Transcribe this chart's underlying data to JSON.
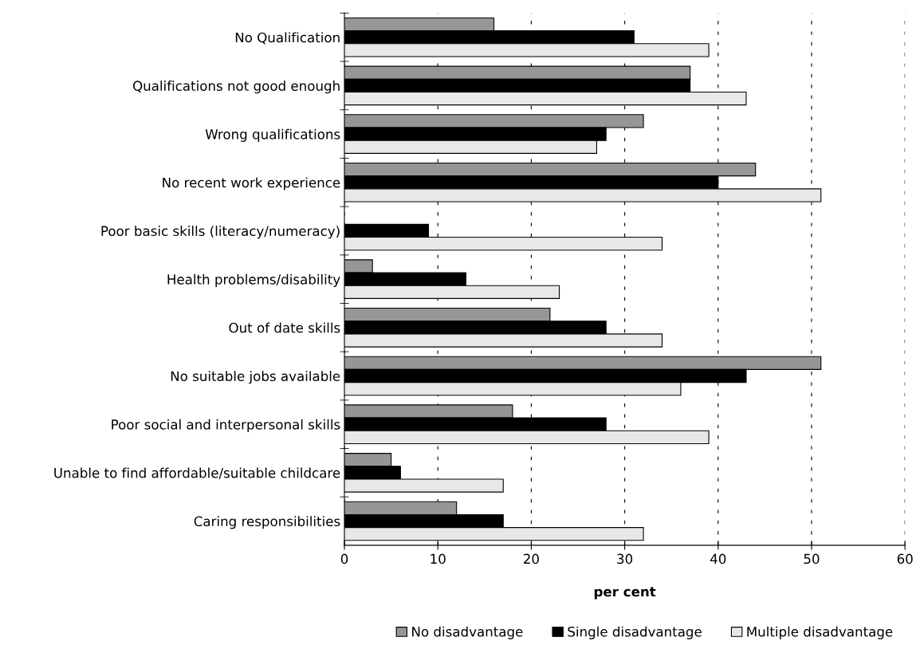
{
  "chart_data": {
    "type": "bar",
    "orientation": "horizontal",
    "xlabel": "per cent",
    "categories": [
      "No Qualification",
      "Qualifications not good enough",
      "Wrong qualifications",
      "No recent work experience",
      "Poor basic skills (literacy/numeracy)",
      "Health problems/disability",
      "Out of date skills",
      "No suitable jobs available",
      "Poor social and interpersonal skills",
      "Unable to find affordable/suitable childcare",
      "Caring responsibilities"
    ],
    "series": [
      {
        "name": "No disadvantage",
        "color": "#969696",
        "values": [
          16,
          37,
          32,
          44,
          null,
          3,
          22,
          51,
          18,
          5,
          12
        ]
      },
      {
        "name": "Single disadvantage",
        "color": "#000000",
        "values": [
          31,
          37,
          28,
          40,
          9,
          13,
          28,
          43,
          28,
          6,
          17
        ]
      },
      {
        "name": "Multiple disadvantage",
        "color": "#e8e8e8",
        "values": [
          39,
          43,
          27,
          51,
          34,
          23,
          34,
          36,
          39,
          17,
          32
        ]
      }
    ],
    "xlim": [
      0,
      60
    ],
    "xticks": [
      0,
      10,
      20,
      30,
      40,
      50,
      60
    ],
    "grid": "x",
    "legend": "bottom"
  }
}
